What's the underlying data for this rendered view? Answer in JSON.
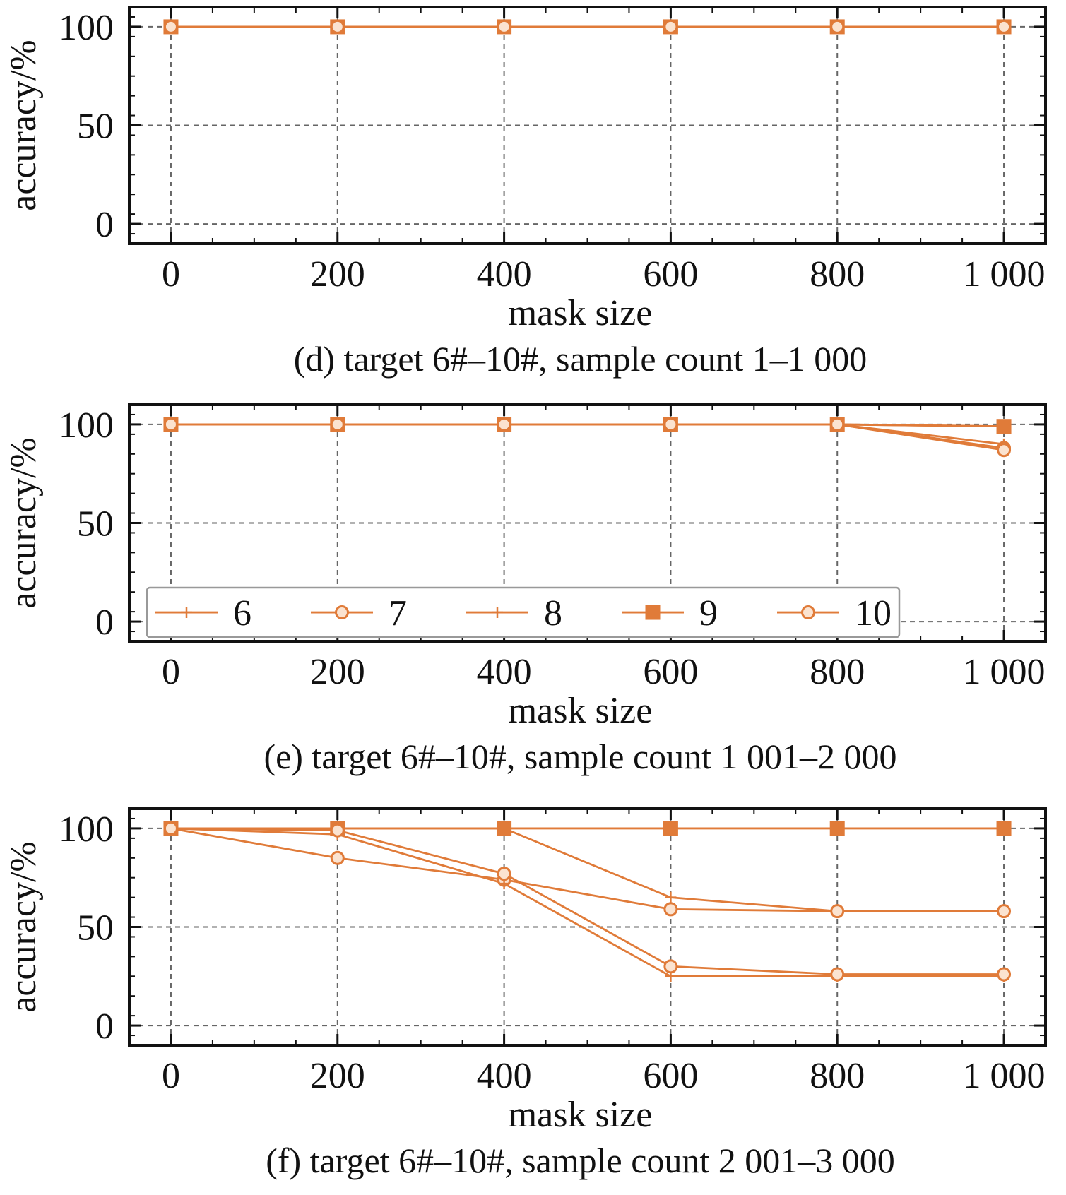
{
  "colors": {
    "series": "#E07B39",
    "axis": "#111111",
    "grid": "#666666",
    "legend_border": "#999999"
  },
  "chart_data": [
    {
      "type": "line",
      "caption": "(d) target 6#–10#, sample count 1–1 000",
      "xlabel": "mask size",
      "ylabel": "accuracy/%",
      "xlim": [
        -50,
        1050
      ],
      "ylim": [
        -10,
        110
      ],
      "xticks": [
        0,
        200,
        400,
        600,
        800,
        1000
      ],
      "xtick_labels": [
        "0",
        "200",
        "400",
        "600",
        "800",
        "1 000"
      ],
      "yticks": [
        0,
        50,
        100
      ],
      "ytick_labels": [
        "0",
        "50",
        "100"
      ],
      "grid": true,
      "legend": false,
      "x": [
        0,
        200,
        400,
        600,
        800,
        1000
      ],
      "series": [
        {
          "name": "6",
          "marker": "plus",
          "values": [
            100,
            100,
            100,
            100,
            100,
            100
          ]
        },
        {
          "name": "7",
          "marker": "circle",
          "values": [
            100,
            100,
            100,
            100,
            100,
            100
          ]
        },
        {
          "name": "8",
          "marker": "plus",
          "values": [
            100,
            100,
            100,
            100,
            100,
            100
          ]
        },
        {
          "name": "9",
          "marker": "square",
          "values": [
            100,
            100,
            100,
            100,
            100,
            100
          ]
        },
        {
          "name": "10",
          "marker": "circle",
          "values": [
            100,
            100,
            100,
            100,
            100,
            100
          ]
        }
      ]
    },
    {
      "type": "line",
      "caption": "(e) target 6#–10#, sample count 1 001–2 000",
      "xlabel": "mask size",
      "ylabel": "accuracy/%",
      "xlim": [
        -50,
        1050
      ],
      "ylim": [
        -10,
        110
      ],
      "xticks": [
        0,
        200,
        400,
        600,
        800,
        1000
      ],
      "xtick_labels": [
        "0",
        "200",
        "400",
        "600",
        "800",
        "1 000"
      ],
      "yticks": [
        0,
        50,
        100
      ],
      "ytick_labels": [
        "0",
        "50",
        "100"
      ],
      "grid": true,
      "legend": true,
      "legend_position": "lower-left",
      "x": [
        0,
        200,
        400,
        600,
        800,
        1000
      ],
      "series": [
        {
          "name": "6",
          "marker": "plus",
          "values": [
            100,
            100,
            100,
            100,
            100,
            90
          ]
        },
        {
          "name": "7",
          "marker": "circle",
          "values": [
            100,
            100,
            100,
            100,
            100,
            88
          ]
        },
        {
          "name": "8",
          "marker": "plus",
          "values": [
            100,
            100,
            100,
            100,
            100,
            99
          ]
        },
        {
          "name": "9",
          "marker": "square",
          "values": [
            100,
            100,
            100,
            100,
            100,
            99
          ]
        },
        {
          "name": "10",
          "marker": "circle",
          "values": [
            100,
            100,
            100,
            100,
            100,
            87
          ]
        }
      ]
    },
    {
      "type": "line",
      "caption": "(f) target 6#–10#, sample count 2 001–3 000",
      "xlabel": "mask size",
      "ylabel": "accuracy/%",
      "xlim": [
        -50,
        1050
      ],
      "ylim": [
        -10,
        110
      ],
      "xticks": [
        0,
        200,
        400,
        600,
        800,
        1000
      ],
      "xtick_labels": [
        "0",
        "200",
        "400",
        "600",
        "800",
        "1 000"
      ],
      "yticks": [
        0,
        50,
        100
      ],
      "ytick_labels": [
        "0",
        "50",
        "100"
      ],
      "grid": true,
      "legend": false,
      "x": [
        0,
        200,
        400,
        600,
        800,
        1000
      ],
      "series": [
        {
          "name": "6",
          "marker": "plus",
          "values": [
            100,
            100,
            100,
            65,
            58,
            58
          ]
        },
        {
          "name": "7",
          "marker": "circle",
          "values": [
            100,
            85,
            74,
            59,
            58,
            58
          ]
        },
        {
          "name": "8",
          "marker": "plus",
          "values": [
            100,
            97,
            72,
            25,
            25,
            25
          ]
        },
        {
          "name": "9",
          "marker": "square",
          "values": [
            100,
            100,
            100,
            100,
            100,
            100
          ]
        },
        {
          "name": "10",
          "marker": "circle",
          "values": [
            100,
            99,
            77,
            30,
            26,
            26
          ]
        }
      ]
    }
  ]
}
